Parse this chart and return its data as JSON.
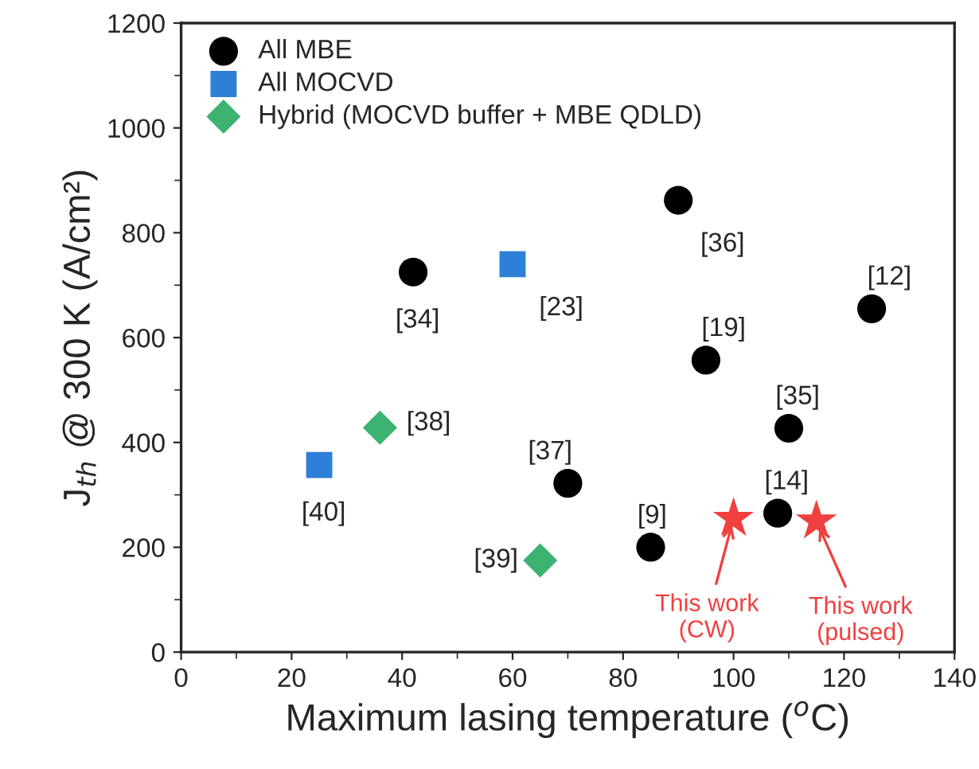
{
  "chart_data": {
    "type": "scatter",
    "xlabel": "Maximum lasing temperature ($^{o}$C)",
    "ylabel": "J$_{th}$ @ 300 K (A/cm²)",
    "xlim": [
      0,
      140
    ],
    "xticks": [
      0,
      20,
      40,
      60,
      80,
      100,
      120,
      140
    ],
    "ylim": [
      0,
      1200
    ],
    "yticks": [
      0,
      200,
      400,
      600,
      800,
      1000,
      1200
    ],
    "legend": "top left",
    "grid": false,
    "series": [
      {
        "name": "All MBE",
        "color": "#000000",
        "marker": "circle",
        "x": [
          42,
          90,
          125,
          95,
          110,
          70,
          85,
          108
        ],
        "values": [
          725,
          862,
          655,
          557,
          427,
          322,
          200,
          265
        ]
      },
      {
        "name": "All MOCVD",
        "color": "#2e7fd8",
        "marker": "square",
        "x": [
          60,
          25
        ],
        "values": [
          740,
          357
        ]
      },
      {
        "name": "Hybrid (MOCVD buffer + MBE QDLD)",
        "color": "#3cb371",
        "marker": "diamond",
        "x": [
          36,
          65
        ],
        "values": [
          428,
          175
        ]
      },
      {
        "color": "#f04040",
        "marker": "star",
        "x": [
          100,
          115
        ],
        "values": [
          255,
          250
        ]
      }
    ],
    "annotations": [
      {
        "text": "[34]",
        "x": 42,
        "y": 725
      },
      {
        "text": "[36]",
        "x": 90,
        "y": 862
      },
      {
        "text": "[12]",
        "x": 125,
        "y": 655
      },
      {
        "text": "[19]",
        "x": 95,
        "y": 557
      },
      {
        "text": "[35]",
        "x": 110,
        "y": 427
      },
      {
        "text": "[37]",
        "x": 70,
        "y": 322
      },
      {
        "text": "[9]",
        "x": 85,
        "y": 200
      },
      {
        "text": "[14]",
        "x": 108,
        "y": 265
      },
      {
        "text": "[23]",
        "x": 60,
        "y": 740
      },
      {
        "text": "[40]",
        "x": 25,
        "y": 357
      },
      {
        "text": "[38]",
        "x": 36,
        "y": 428
      },
      {
        "text": "[39]",
        "x": 65,
        "y": 175
      },
      {
        "text": "This work\n(CW)",
        "x": 100,
        "y": 255
      },
      {
        "text": "This work\n(pulsed)",
        "x": 115,
        "y": 250
      }
    ]
  }
}
